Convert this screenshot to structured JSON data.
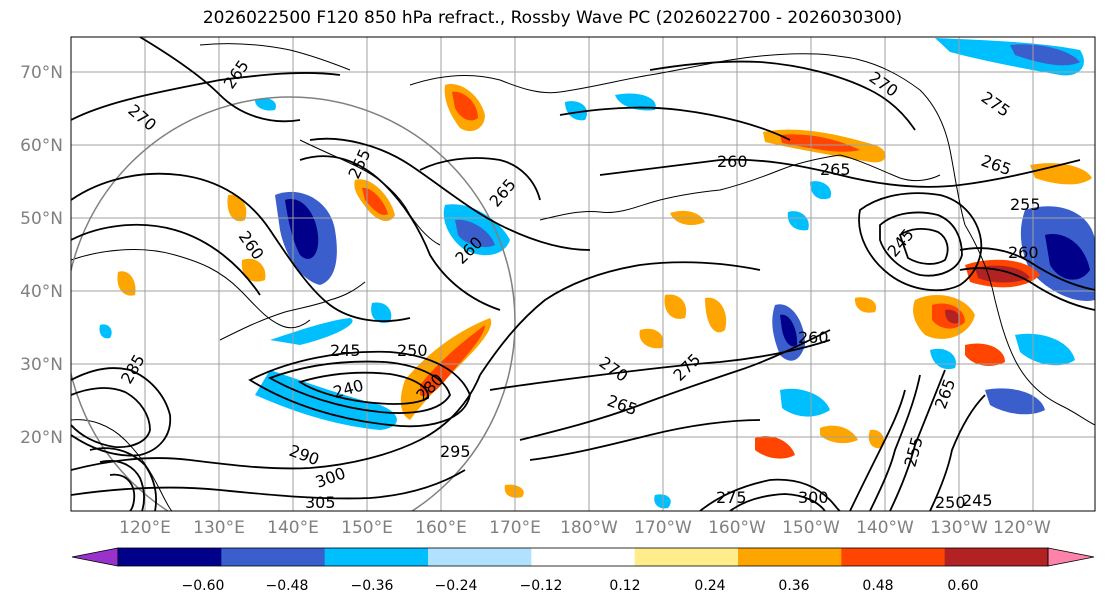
{
  "title": "2026022500 F120 850 hPa refract., Rossby Wave PC (2026022700 - 2026030300)",
  "latitude_labels": [
    "70°N",
    "60°N",
    "50°N",
    "40°N",
    "30°N",
    "20°N"
  ],
  "longitude_labels": [
    "120°E",
    "130°E",
    "140°E",
    "150°E",
    "160°E",
    "170°E",
    "180°W",
    "170°W",
    "160°W",
    "150°W",
    "140°W",
    "130°W",
    "120°W"
  ],
  "colorbar": {
    "colors": [
      "#9932cc",
      "#00008b",
      "#3a5fcd",
      "#00bfff",
      "#b0e2ff",
      "#ffffff",
      "#ffec8b",
      "#ffa500",
      "#ff4500",
      "#b22222",
      "#ff82ab"
    ],
    "tick_labels": [
      "−0.60",
      "−0.48",
      "−0.36",
      "−0.24",
      "−0.12",
      "0.12",
      "0.24",
      "0.36",
      "0.48",
      "0.60"
    ]
  },
  "contour_labels": [
    "265",
    "270",
    "255",
    "260",
    "265",
    "260",
    "260",
    "265",
    "270",
    "275",
    "265",
    "255",
    "245",
    "260",
    "260",
    "245",
    "250",
    "240",
    "280",
    "285",
    "290",
    "295",
    "300",
    "305",
    "270",
    "275",
    "265",
    "275",
    "300",
    "250",
    "245",
    "255",
    "265"
  ]
}
